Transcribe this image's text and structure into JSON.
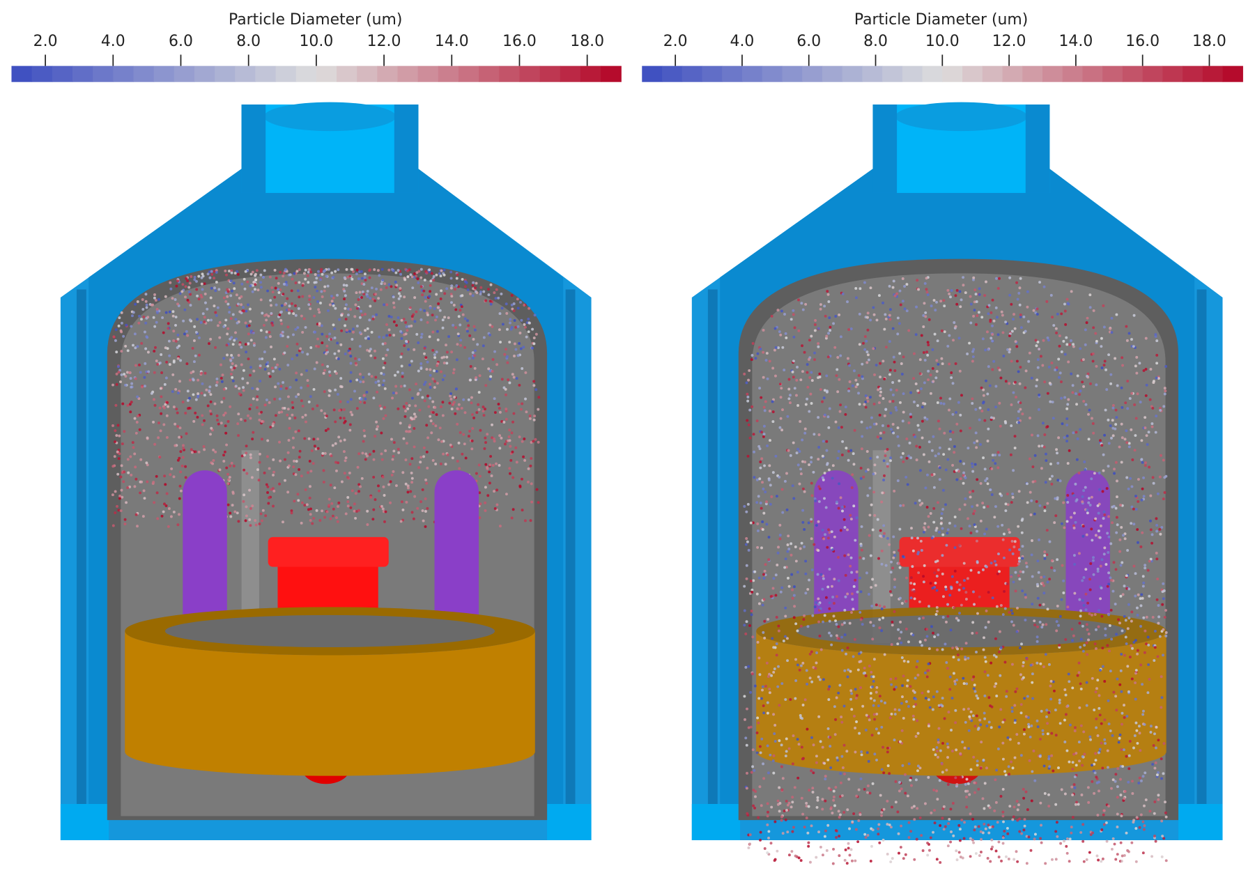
{
  "panels": [
    {
      "colorbar": {
        "title": "Particle Diameter (um)",
        "lim": [
          1,
          19
        ],
        "ticks": [
          {
            "value": 2,
            "label": "2.0"
          },
          {
            "value": 4,
            "label": "4.0"
          },
          {
            "value": 6,
            "label": "6.0"
          },
          {
            "value": 8,
            "label": "8.0"
          },
          {
            "value": 10,
            "label": "10.0"
          },
          {
            "value": 12,
            "label": "12.0"
          },
          {
            "value": 14,
            "label": "14.0"
          },
          {
            "value": 16,
            "label": "16.0"
          },
          {
            "value": 18,
            "label": "18.0"
          }
        ],
        "colormap": [
          "#3b4cc0",
          "#dddddd",
          "#b40426"
        ]
      }
    },
    {
      "colorbar": {
        "title": "Particle Diameter (um)",
        "lim": [
          1,
          19
        ],
        "ticks": [
          {
            "value": 2,
            "label": "2.0"
          },
          {
            "value": 4,
            "label": "4.0"
          },
          {
            "value": 6,
            "label": "6.0"
          },
          {
            "value": 8,
            "label": "8.0"
          },
          {
            "value": 10,
            "label": "10.0"
          },
          {
            "value": 12,
            "label": "12.0"
          },
          {
            "value": 14,
            "label": "14.0"
          },
          {
            "value": 16,
            "label": "16.0"
          },
          {
            "value": 18,
            "label": "18.0"
          }
        ],
        "colormap": [
          "#3b4cc0",
          "#dddddd",
          "#b40426"
        ]
      }
    }
  ]
}
